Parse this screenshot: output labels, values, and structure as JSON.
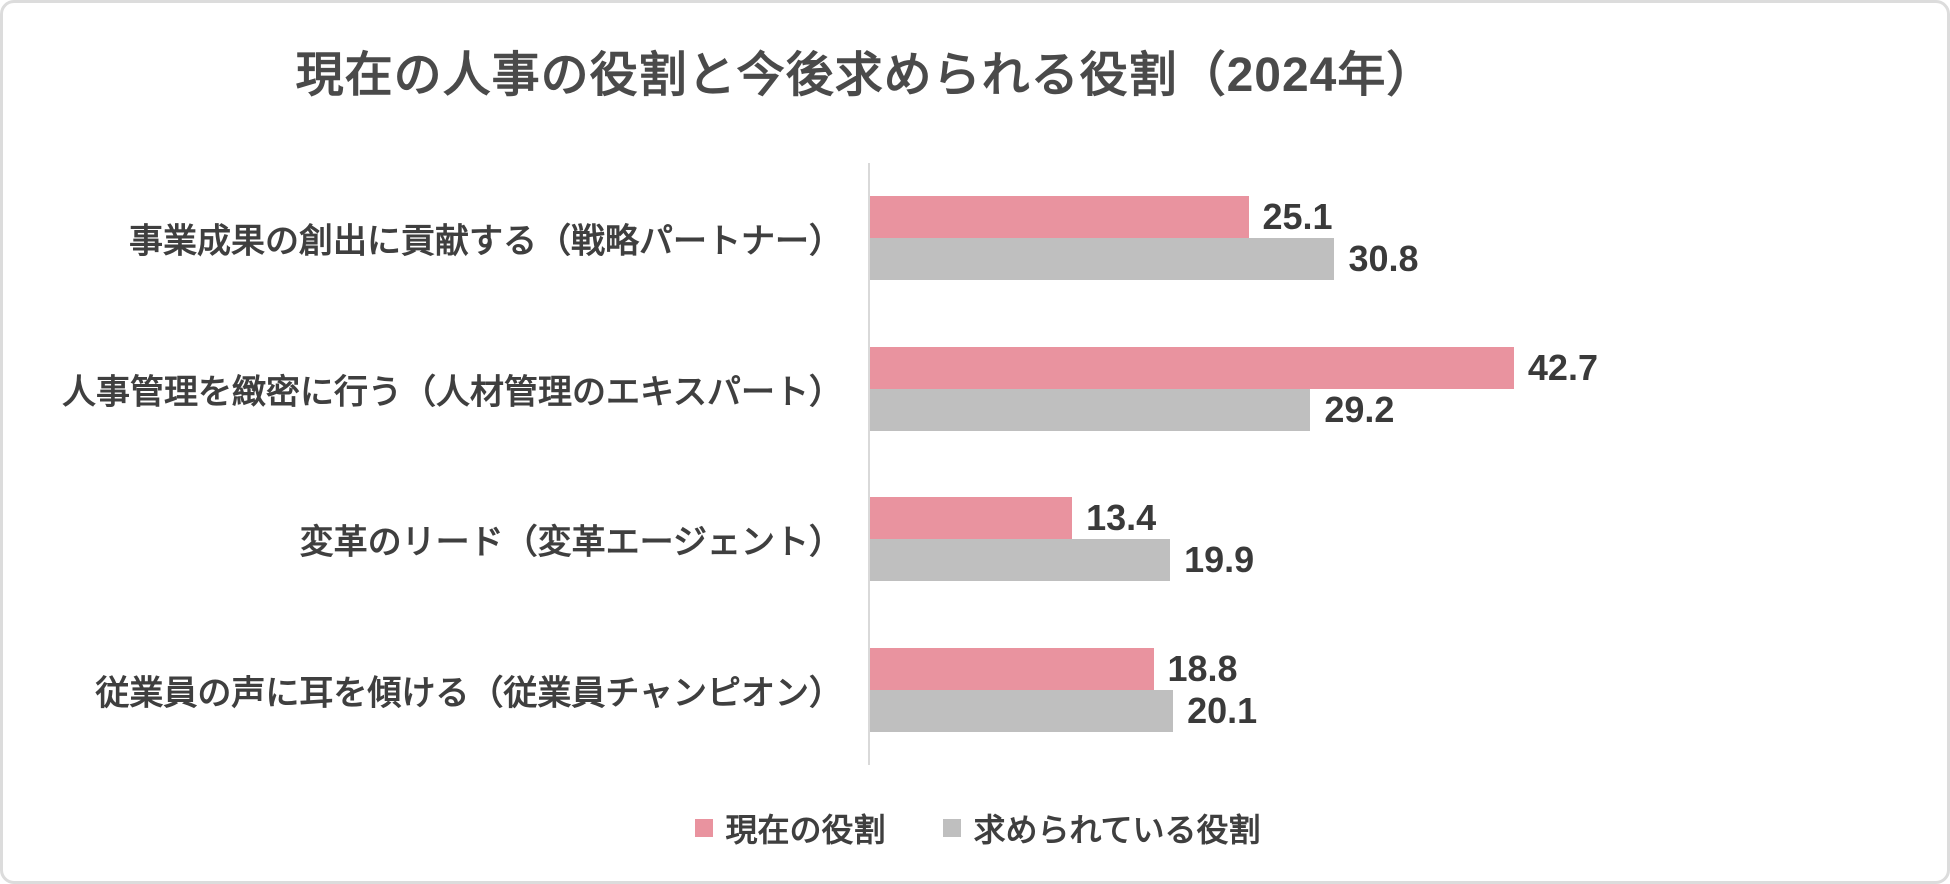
{
  "page": {
    "background": "#ffffff",
    "border_color": "#dcdcdc"
  },
  "colors": {
    "title_text": "#4a4a4a",
    "label_text": "#3f3f3f",
    "value_text": "#3a3a3a",
    "axis_line": "#d9d9d9",
    "series_current": "#e9939f",
    "series_required": "#bfbfbf"
  },
  "chart_data": {
    "type": "bar",
    "orientation": "horizontal",
    "title": "現在の人事の役割と今後求められる役割（2024年）",
    "categories": [
      "事業成果の創出に貢献する（戦略パートナー）",
      "人事管理を緻密に行う（人材管理のエキスパート）",
      "変革のリード（変革エージェント）",
      "従業員の声に耳を傾ける（従業員チャンピオン）"
    ],
    "series": [
      {
        "name": "現在の役割",
        "color": "#e9939f",
        "values": [
          25.1,
          42.7,
          13.4,
          18.8
        ]
      },
      {
        "name": "求められている役割",
        "color": "#bfbfbf",
        "values": [
          30.8,
          29.2,
          19.9,
          20.1
        ]
      }
    ],
    "value_labels": [
      "25.1",
      "30.8",
      "42.7",
      "29.2",
      "13.4",
      "19.9",
      "18.8",
      "20.1"
    ],
    "xlim": [
      0,
      45
    ],
    "xlabel": "",
    "ylabel": "",
    "grid": false,
    "legend_position": "bottom"
  }
}
